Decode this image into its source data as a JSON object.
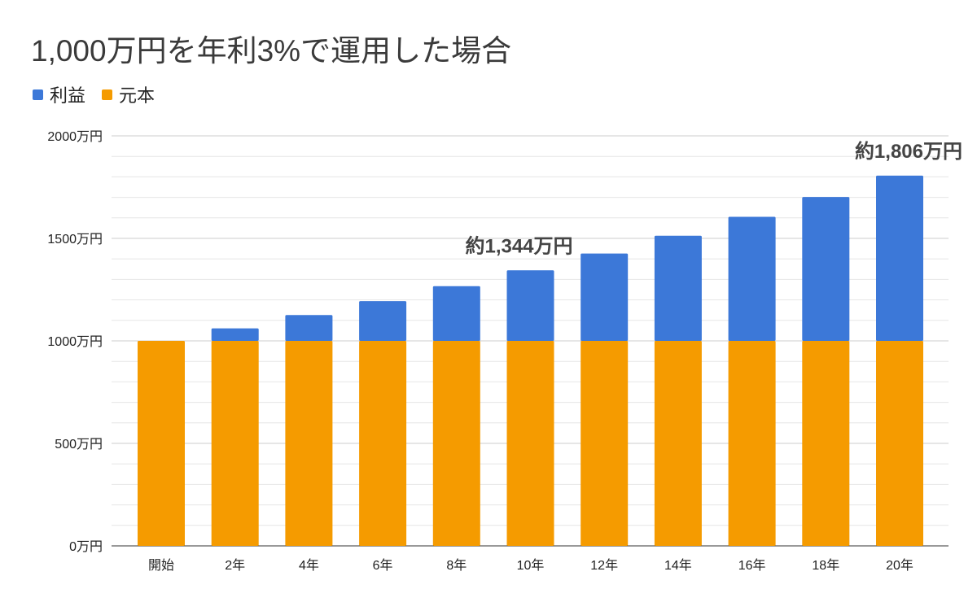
{
  "chart_data": {
    "type": "bar",
    "stacked": true,
    "title": "1,000万円を年利3%で運用した場合",
    "categories": [
      "開始",
      "2年",
      "4年",
      "6年",
      "8年",
      "10年",
      "12年",
      "14年",
      "16年",
      "18年",
      "20年"
    ],
    "series": [
      {
        "name": "利益",
        "color": "#3c78d8",
        "values": [
          0,
          61,
          126,
          194,
          267,
          344,
          426,
          513,
          605,
          702,
          806
        ]
      },
      {
        "name": "元本",
        "color": "#f59b00",
        "values": [
          1000,
          1000,
          1000,
          1000,
          1000,
          1000,
          1000,
          1000,
          1000,
          1000,
          1000
        ]
      }
    ],
    "ylim": [
      0,
      2000
    ],
    "yticks": [
      {
        "value": 0,
        "label": "0万円"
      },
      {
        "value": 500,
        "label": "500万円"
      },
      {
        "value": 1000,
        "label": "1000万円"
      },
      {
        "value": 1500,
        "label": "1500万円"
      },
      {
        "value": 2000,
        "label": "2000万円"
      }
    ],
    "minor_grid_step": 100,
    "grid": true,
    "legend": "top-left",
    "annotations": [
      {
        "category": "10年",
        "text": "約1,344万円"
      },
      {
        "category": "20年",
        "text": "約1,806万円"
      }
    ]
  }
}
